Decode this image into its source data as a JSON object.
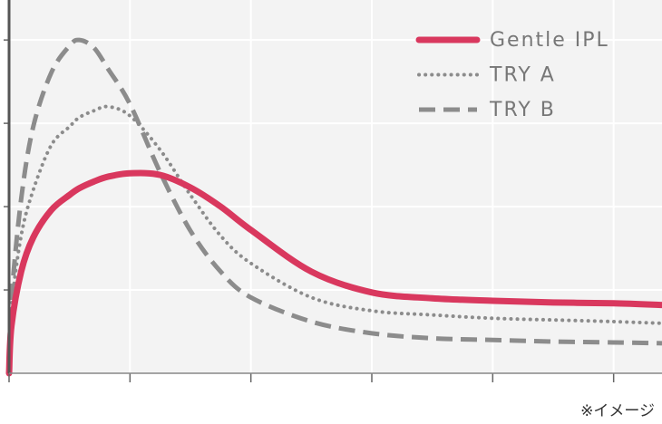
{
  "chart_data": {
    "type": "line",
    "annotation": "※イメージ",
    "x": [
      0,
      0.02,
      0.1,
      0.2,
      0.35,
      0.5,
      0.58,
      0.7,
      0.82,
      1.0,
      1.25,
      1.5,
      1.75,
      2.0,
      2.5,
      3.0,
      3.5,
      4.0,
      4.5,
      5.0,
      5.4
    ],
    "series": [
      {
        "name": "Gentle IPL",
        "color": "#d9385e",
        "style": "solid",
        "values": [
          0,
          0.57,
          1.22,
          1.63,
          1.96,
          2.14,
          2.22,
          2.3,
          2.36,
          2.4,
          2.38,
          2.23,
          2.0,
          1.72,
          1.22,
          0.97,
          0.9,
          0.87,
          0.85,
          0.84,
          0.82
        ]
      },
      {
        "name": "TRY A",
        "color": "#8c8c8c",
        "style": "dotted",
        "values": [
          0,
          0.78,
          1.65,
          2.2,
          2.74,
          2.96,
          3.07,
          3.15,
          3.2,
          3.09,
          2.68,
          2.14,
          1.65,
          1.32,
          0.91,
          0.75,
          0.7,
          0.66,
          0.64,
          0.62,
          0.6
        ]
      },
      {
        "name": "TRY B",
        "color": "#8c8c8c",
        "style": "dashed",
        "values": [
          0,
          0.89,
          2.09,
          2.96,
          3.61,
          3.93,
          4.0,
          3.91,
          3.65,
          3.23,
          2.41,
          1.71,
          1.22,
          0.91,
          0.62,
          0.48,
          0.42,
          0.4,
          0.38,
          0.37,
          0.36
        ]
      }
    ],
    "xlim": [
      0,
      5.4
    ],
    "ylim": [
      0,
      4.48
    ],
    "xticks": [
      0,
      1,
      2,
      3,
      4,
      5
    ],
    "yticks": [
      1,
      2,
      3,
      4
    ],
    "grid": true
  }
}
